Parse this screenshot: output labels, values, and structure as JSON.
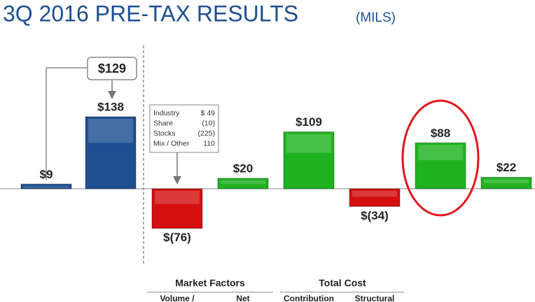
{
  "chart_data": {
    "type": "bar",
    "title": "3Q 2016 PRE-TAX RESULTS",
    "subtitle": "(MILS)",
    "values": [
      9,
      138,
      -76,
      20,
      109,
      -34,
      88,
      22
    ],
    "value_labels": [
      "$9",
      "$138",
      "$(76)",
      "$20",
      "$109",
      "$(34)",
      "$88",
      "$22"
    ],
    "colors": [
      "#1d4f91",
      "#1d4f91",
      "#d40f0f",
      "#1fb21f",
      "#1fb21f",
      "#d40f0f",
      "#1fb21f",
      "#1fb21f"
    ],
    "callout": "$129",
    "breakdown": [
      [
        "Industry",
        "$  49"
      ],
      [
        "Share",
        "(10)"
      ],
      [
        "Stocks",
        "(225)"
      ],
      [
        "Mix / Other",
        "110"
      ]
    ],
    "groups": [
      "Market Factors",
      "Total Cost"
    ],
    "sub_labels": [
      "Volume /",
      "Net",
      "Contribution",
      "Structural"
    ]
  }
}
